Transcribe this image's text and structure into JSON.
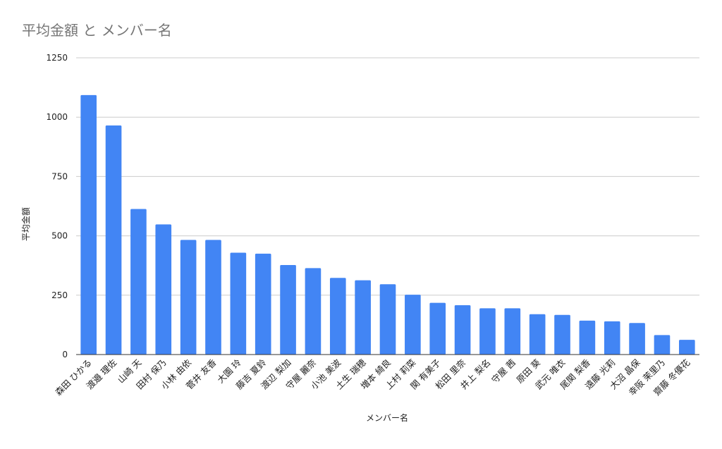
{
  "chart_data": {
    "type": "bar",
    "title": "平均金額 と メンバー名",
    "xlabel": "メンバー名",
    "ylabel": "平均金額",
    "ylim": [
      0,
      1250
    ],
    "yticks": [
      0,
      250,
      500,
      750,
      1000,
      1250
    ],
    "grid": true,
    "legend": "none",
    "bar_color": "#4285f4",
    "categories": [
      "森田 ひかる",
      "渡邉 理佐",
      "山崎 天",
      "田村 保乃",
      "小林 由依",
      "菅井 友香",
      "大園 玲",
      "藤吉 夏鈴",
      "渡辺 梨加",
      "守屋 麗奈",
      "小池 美波",
      "土生 瑞穂",
      "増本 綺良",
      "上村 莉菜",
      "関 有美子",
      "松田 里奈",
      "井上 梨名",
      "守屋 茜",
      "原田 葵",
      "武元 唯衣",
      "尾関 梨香",
      "遠藤 光莉",
      "大沼 晶保",
      "幸阪 茉里乃",
      "齋藤 冬優花"
    ],
    "values": [
      1093,
      965,
      613,
      548,
      483,
      483,
      429,
      425,
      377,
      364,
      323,
      313,
      296,
      252,
      218,
      208,
      195,
      195,
      170,
      167,
      143,
      140,
      133,
      82,
      62
    ]
  }
}
